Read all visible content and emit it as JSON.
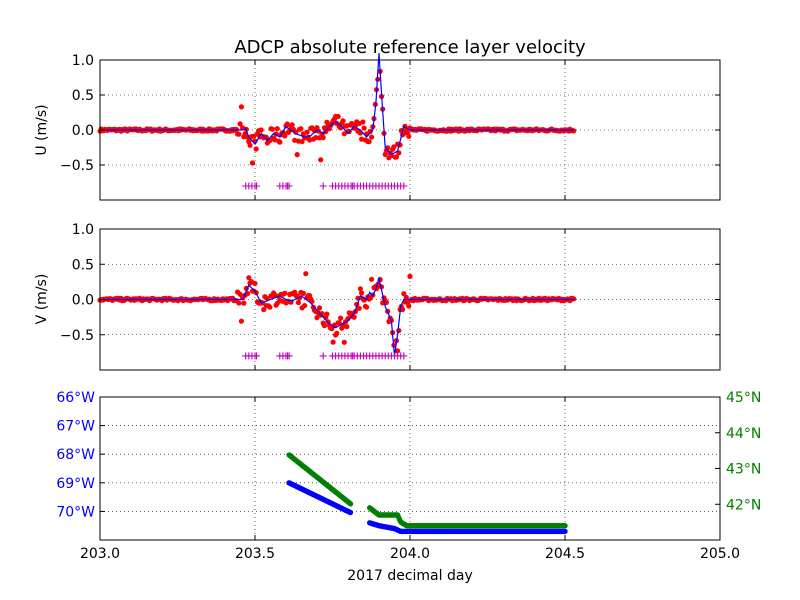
{
  "title": "ADCP absolute reference layer velocity",
  "xlabel": "2017 decimal day",
  "colors": {
    "measured": "#ff0000",
    "smoothed": "#0000ff",
    "flag": "#bf00bf",
    "lon": "#0000ff",
    "lat": "#008000"
  },
  "chart_data": [
    {
      "type": "scatter",
      "name": "u-panel",
      "ylabel": "U (m/s)",
      "xlim": [
        203.0,
        205.0
      ],
      "ylim": [
        -1.0,
        1.0
      ],
      "yticks": [
        "1.0",
        "0.5",
        "0.0",
        "−0.5"
      ],
      "ytick_values": [
        1.0,
        0.5,
        0.0,
        -0.5
      ],
      "grid": true,
      "flag_y": -0.8,
      "flags_x": [
        203.47,
        203.48,
        203.49,
        203.5,
        203.505,
        203.58,
        203.59,
        203.6,
        203.605,
        203.61,
        203.72,
        203.75,
        203.76,
        203.77,
        203.78,
        203.79,
        203.8,
        203.81,
        203.815,
        203.82,
        203.83,
        203.84,
        203.85,
        203.86,
        203.87,
        203.88,
        203.89,
        203.9,
        203.91,
        203.92,
        203.93,
        203.94,
        203.95,
        203.96,
        203.97,
        203.98
      ],
      "anchors": [
        [
          203.0,
          0.0
        ],
        [
          203.46,
          0.0
        ],
        [
          203.47,
          0.02
        ],
        [
          203.48,
          -0.1
        ],
        [
          203.5,
          -0.2
        ],
        [
          203.52,
          -0.05
        ],
        [
          203.54,
          -0.15
        ],
        [
          203.56,
          -0.05
        ],
        [
          203.58,
          -0.1
        ],
        [
          203.6,
          0.05
        ],
        [
          203.63,
          -0.05
        ],
        [
          203.66,
          -0.1
        ],
        [
          203.68,
          -0.08
        ],
        [
          203.7,
          0.0
        ],
        [
          203.72,
          -0.05
        ],
        [
          203.74,
          0.05
        ],
        [
          203.76,
          0.12
        ],
        [
          203.78,
          0.05
        ],
        [
          203.8,
          -0.05
        ],
        [
          203.82,
          0.05
        ],
        [
          203.84,
          0.0
        ],
        [
          203.86,
          -0.1
        ],
        [
          203.87,
          -0.05
        ],
        [
          203.88,
          0.0
        ],
        [
          203.89,
          0.38
        ],
        [
          203.9,
          1.1
        ],
        [
          203.91,
          0.4
        ],
        [
          203.92,
          -0.25
        ],
        [
          203.94,
          -0.35
        ],
        [
          203.96,
          -0.3
        ],
        [
          203.98,
          0.05
        ],
        [
          204.0,
          0.0
        ],
        [
          204.53,
          0.0
        ]
      ]
    },
    {
      "type": "scatter",
      "name": "v-panel",
      "ylabel": "V (m/s)",
      "xlim": [
        203.0,
        205.0
      ],
      "ylim": [
        -1.0,
        1.0
      ],
      "yticks": [
        "1.0",
        "0.5",
        "0.0",
        "−0.5"
      ],
      "ytick_values": [
        1.0,
        0.5,
        0.0,
        -0.5
      ],
      "grid": true,
      "flag_y": -0.8,
      "flags_x": [
        203.47,
        203.48,
        203.49,
        203.5,
        203.505,
        203.58,
        203.59,
        203.6,
        203.605,
        203.61,
        203.72,
        203.75,
        203.76,
        203.77,
        203.78,
        203.79,
        203.8,
        203.81,
        203.815,
        203.82,
        203.83,
        203.84,
        203.85,
        203.86,
        203.87,
        203.88,
        203.89,
        203.9,
        203.91,
        203.92,
        203.93,
        203.94,
        203.95,
        203.96,
        203.97,
        203.98
      ],
      "anchors": [
        [
          203.0,
          0.0
        ],
        [
          203.46,
          0.0
        ],
        [
          203.48,
          0.2
        ],
        [
          203.5,
          0.12
        ],
        [
          203.52,
          -0.05
        ],
        [
          203.55,
          0.0
        ],
        [
          203.58,
          0.05
        ],
        [
          203.6,
          0.0
        ],
        [
          203.62,
          -0.02
        ],
        [
          203.65,
          0.05
        ],
        [
          203.68,
          -0.05
        ],
        [
          203.7,
          -0.15
        ],
        [
          203.72,
          -0.25
        ],
        [
          203.74,
          -0.35
        ],
        [
          203.76,
          -0.4
        ],
        [
          203.78,
          -0.35
        ],
        [
          203.8,
          -0.3
        ],
        [
          203.82,
          -0.2
        ],
        [
          203.84,
          0.05
        ],
        [
          203.86,
          0.0
        ],
        [
          203.87,
          0.1
        ],
        [
          203.88,
          0.05
        ],
        [
          203.89,
          0.15
        ],
        [
          203.9,
          0.3
        ],
        [
          203.92,
          -0.1
        ],
        [
          203.94,
          -0.3
        ],
        [
          203.95,
          -0.8
        ],
        [
          203.96,
          -0.5
        ],
        [
          203.97,
          -0.1
        ],
        [
          203.98,
          0.0
        ],
        [
          204.53,
          0.0
        ]
      ]
    },
    {
      "type": "scatter",
      "name": "position-panel",
      "xlim": [
        203.0,
        205.0
      ],
      "xticks": [
        "203.0",
        "203.5",
        "204.0",
        "204.5",
        "205.0"
      ],
      "xtick_values": [
        203.0,
        203.5,
        204.0,
        204.5,
        205.0
      ],
      "grid": true,
      "left_axis": {
        "ylim": [
          -66.0,
          -71.0
        ],
        "yticks": [
          "66°W",
          "67°W",
          "68°W",
          "69°W",
          "70°W"
        ],
        "ytick_values": [
          -66,
          -67,
          -68,
          -69,
          -70
        ],
        "segments": [
          {
            "x": [
              203.61,
              203.81
            ],
            "y": [
              -69.0,
              -70.05
            ]
          },
          {
            "x": [
              203.87,
              203.9,
              203.95,
              203.97,
              204.5
            ],
            "y": [
              -70.4,
              -70.5,
              -70.6,
              -70.7,
              -70.7
            ]
          }
        ]
      },
      "right_axis": {
        "ylim": [
          41.0,
          45.0
        ],
        "yticks": [
          "45°N",
          "44°N",
          "43°N",
          "42°N"
        ],
        "ytick_values": [
          45,
          44,
          43,
          42
        ],
        "segments": [
          {
            "x": [
              203.61,
              203.81
            ],
            "y": [
              43.38,
              42.0
            ]
          },
          {
            "x": [
              203.87,
              203.9,
              203.96,
              203.97,
              203.99,
              204.5
            ],
            "y": [
              41.9,
              41.7,
              41.7,
              41.5,
              41.4,
              41.4
            ]
          }
        ]
      }
    }
  ]
}
